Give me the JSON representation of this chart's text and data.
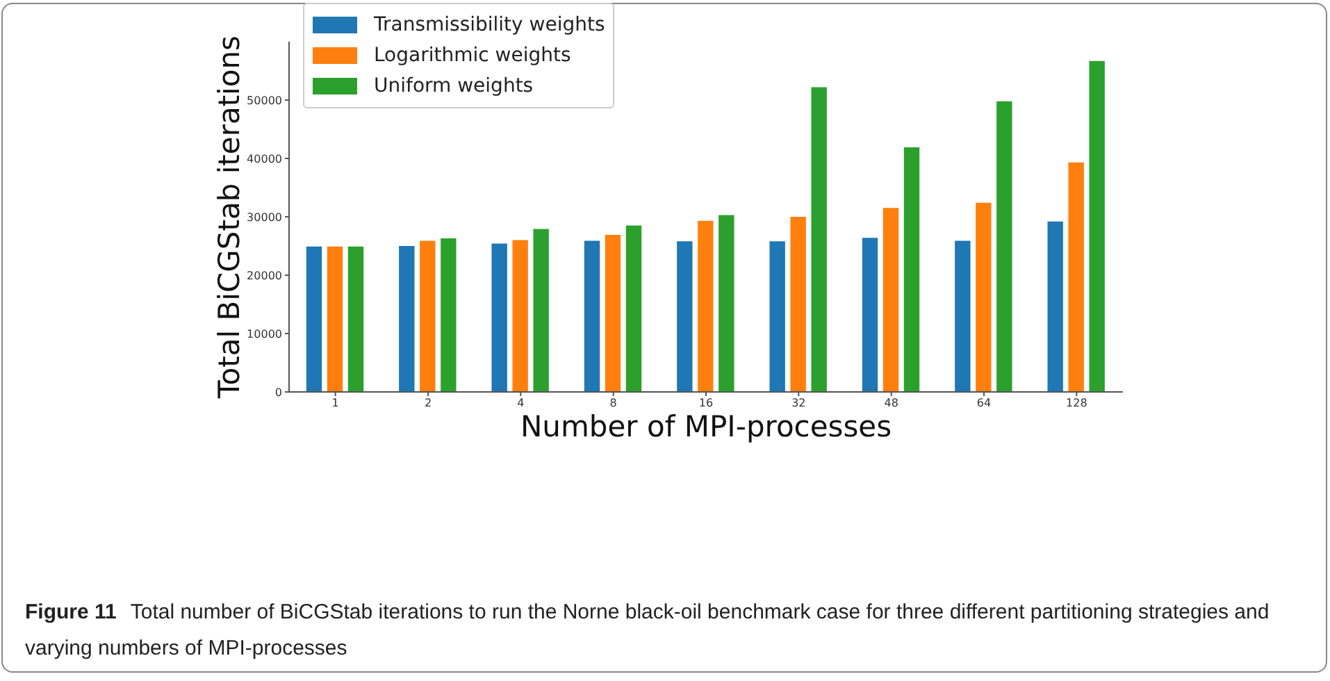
{
  "chart_data": {
    "type": "bar",
    "categories": [
      "1",
      "2",
      "4",
      "8",
      "16",
      "32",
      "48",
      "64",
      "128"
    ],
    "series": [
      {
        "name": "Transmissibility weights",
        "color": "#1f77b4",
        "values": [
          25000,
          25100,
          25500,
          26000,
          25900,
          25900,
          26500,
          26000,
          29300
        ]
      },
      {
        "name": "Logarithmic weights",
        "color": "#ff7f0e",
        "values": [
          25000,
          26000,
          26100,
          27000,
          29400,
          30100,
          31600,
          32500,
          39400
        ]
      },
      {
        "name": "Uniform weights",
        "color": "#2ca02c",
        "values": [
          25000,
          26400,
          28000,
          28600,
          30400,
          52300,
          42000,
          49900,
          56800
        ]
      }
    ],
    "xlabel": "Number of MPI-processes",
    "ylabel": "Total BiCGStab iterations",
    "ylim": [
      0,
      60000
    ],
    "yticks": [
      0,
      10000,
      20000,
      30000,
      40000,
      50000
    ],
    "legend": "top left",
    "grid": false,
    "annotations": [
      "Figure 11",
      "Total number of BiCGStab iterations to run the Norne black-oil benchmark case for three different partitioning strategies and varying numbers of MPI-processes"
    ]
  }
}
